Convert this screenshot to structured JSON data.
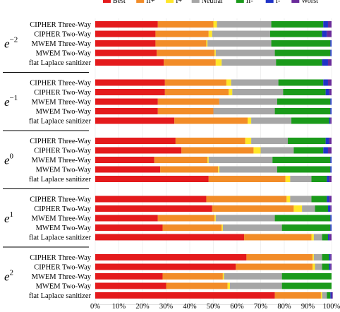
{
  "chart_data": {
    "type": "bar",
    "orientation": "horizontal",
    "stacked": true,
    "legend_position": "top",
    "xlim": [
      0,
      100
    ],
    "x_ticks": [
      "0%",
      "10%",
      "20%",
      "30%",
      "40%",
      "50%",
      "60%",
      "70%",
      "80%",
      "90%",
      "100%"
    ],
    "series": [
      {
        "name": "Best",
        "color": "#e41a1c"
      },
      {
        "name": "II+",
        "color": "#f28c28"
      },
      {
        "name": "I+",
        "color": "#ffe629"
      },
      {
        "name": "Neutral",
        "color": "#a6a6a6"
      },
      {
        "name": "II-",
        "color": "#1a9a1a"
      },
      {
        "name": "I-",
        "color": "#2033c8"
      },
      {
        "name": "Worst",
        "color": "#6a2a9a"
      }
    ],
    "groups": [
      {
        "base": "e",
        "exponent": "−2",
        "rows": [
          {
            "label": "CIPHER Three-Way",
            "values": [
              26.5,
              23.5,
              1.5,
              23,
              22,
              2,
              1.5
            ]
          },
          {
            "label": "CIPHER Two-Way",
            "values": [
              25.5,
              22.5,
              1.5,
              24.5,
              22,
              2,
              2
            ]
          },
          {
            "label": "MWEM Three-Way",
            "values": [
              25.5,
              21.5,
              0.5,
              27,
              25,
              0.5,
              0
            ]
          },
          {
            "label": "MWEM Two-Way",
            "values": [
              26,
              24.5,
              0.5,
              25,
              23.5,
              0.5,
              0
            ]
          },
          {
            "label": "flat Laplace sanitizer",
            "values": [
              29,
              22,
              2.5,
              23,
              19.5,
              2.5,
              1.5
            ]
          }
        ]
      },
      {
        "base": "e",
        "exponent": "−1",
        "rows": [
          {
            "label": "CIPHER Three-Way",
            "values": [
              29.5,
              26,
              2,
              20,
              19,
              2,
              1.5
            ]
          },
          {
            "label": "CIPHER Two-Way",
            "values": [
              29.5,
              27,
              1.5,
              21.5,
              18,
              1.5,
              1
            ]
          },
          {
            "label": "MWEM Three-Way",
            "values": [
              26.5,
              26,
              0,
              24.5,
              22.5,
              0.5,
              0
            ]
          },
          {
            "label": "MWEM Two-Way",
            "values": [
              26.5,
              23.5,
              0,
              26,
              23.5,
              0.5,
              0
            ]
          },
          {
            "label": "flat Laplace sanitizer",
            "values": [
              33.5,
              31,
              1.5,
              17,
              16,
              0.5,
              0.5
            ]
          }
        ]
      },
      {
        "base": "e",
        "exponent": "0",
        "rows": [
          {
            "label": "CIPHER Three-Way",
            "values": [
              34,
              29.5,
              2.5,
              15.5,
              16,
              1.5,
              1
            ]
          },
          {
            "label": "CIPHER Two-Way",
            "values": [
              36.5,
              30.5,
              3,
              14,
              12.5,
              2,
              1.5
            ]
          },
          {
            "label": "MWEM Three-Way",
            "values": [
              25,
              22.5,
              0.5,
              27,
              24.5,
              0.5,
              0
            ]
          },
          {
            "label": "MWEM Two-Way",
            "values": [
              27.5,
              24.5,
              0.5,
              24.5,
              22.5,
              0.5,
              0
            ]
          },
          {
            "label": "flat Laplace sanitizer",
            "values": [
              48,
              32.5,
              2,
              9,
              6.5,
              1,
              1
            ]
          }
        ]
      },
      {
        "base": "e",
        "exponent": "1",
        "rows": [
          {
            "label": "CIPHER Three-Way",
            "values": [
              47,
              34,
              1.5,
              9,
              6.5,
              1,
              1
            ]
          },
          {
            "label": "CIPHER Two-Way",
            "values": [
              49.5,
              34.5,
              3.5,
              5.5,
              5.5,
              1,
              0.5
            ]
          },
          {
            "label": "MWEM Three-Way",
            "values": [
              26.5,
              24,
              0.5,
              25,
              23.5,
              0.5,
              0
            ]
          },
          {
            "label": "MWEM Two-Way",
            "values": [
              28.5,
              25,
              0.5,
              25,
              20.5,
              0.5,
              0
            ]
          },
          {
            "label": "flat Laplace sanitizer",
            "values": [
              63,
              28.5,
              1,
              3.5,
              2.5,
              0.5,
              1
            ]
          }
        ]
      },
      {
        "base": "e",
        "exponent": "2",
        "rows": [
          {
            "label": "CIPHER Three-Way",
            "values": [
              64,
              28,
              0.5,
              3.5,
              3,
              0.5,
              0.5
            ]
          },
          {
            "label": "CIPHER Two-Way",
            "values": [
              59.5,
              32.5,
              1,
              3,
              3,
              0.5,
              0.5
            ]
          },
          {
            "label": "MWEM Three-Way",
            "values": [
              28.5,
              25.5,
              0.5,
              24.5,
              21,
              0,
              0
            ]
          },
          {
            "label": "MWEM Two-Way",
            "values": [
              30,
              26,
              1,
              22,
              21,
              0,
              0
            ]
          },
          {
            "label": "flat Laplace sanitizer",
            "values": [
              76,
              19.5,
              0.5,
              2,
              1.5,
              0.5,
              0.5
            ]
          }
        ]
      }
    ]
  }
}
